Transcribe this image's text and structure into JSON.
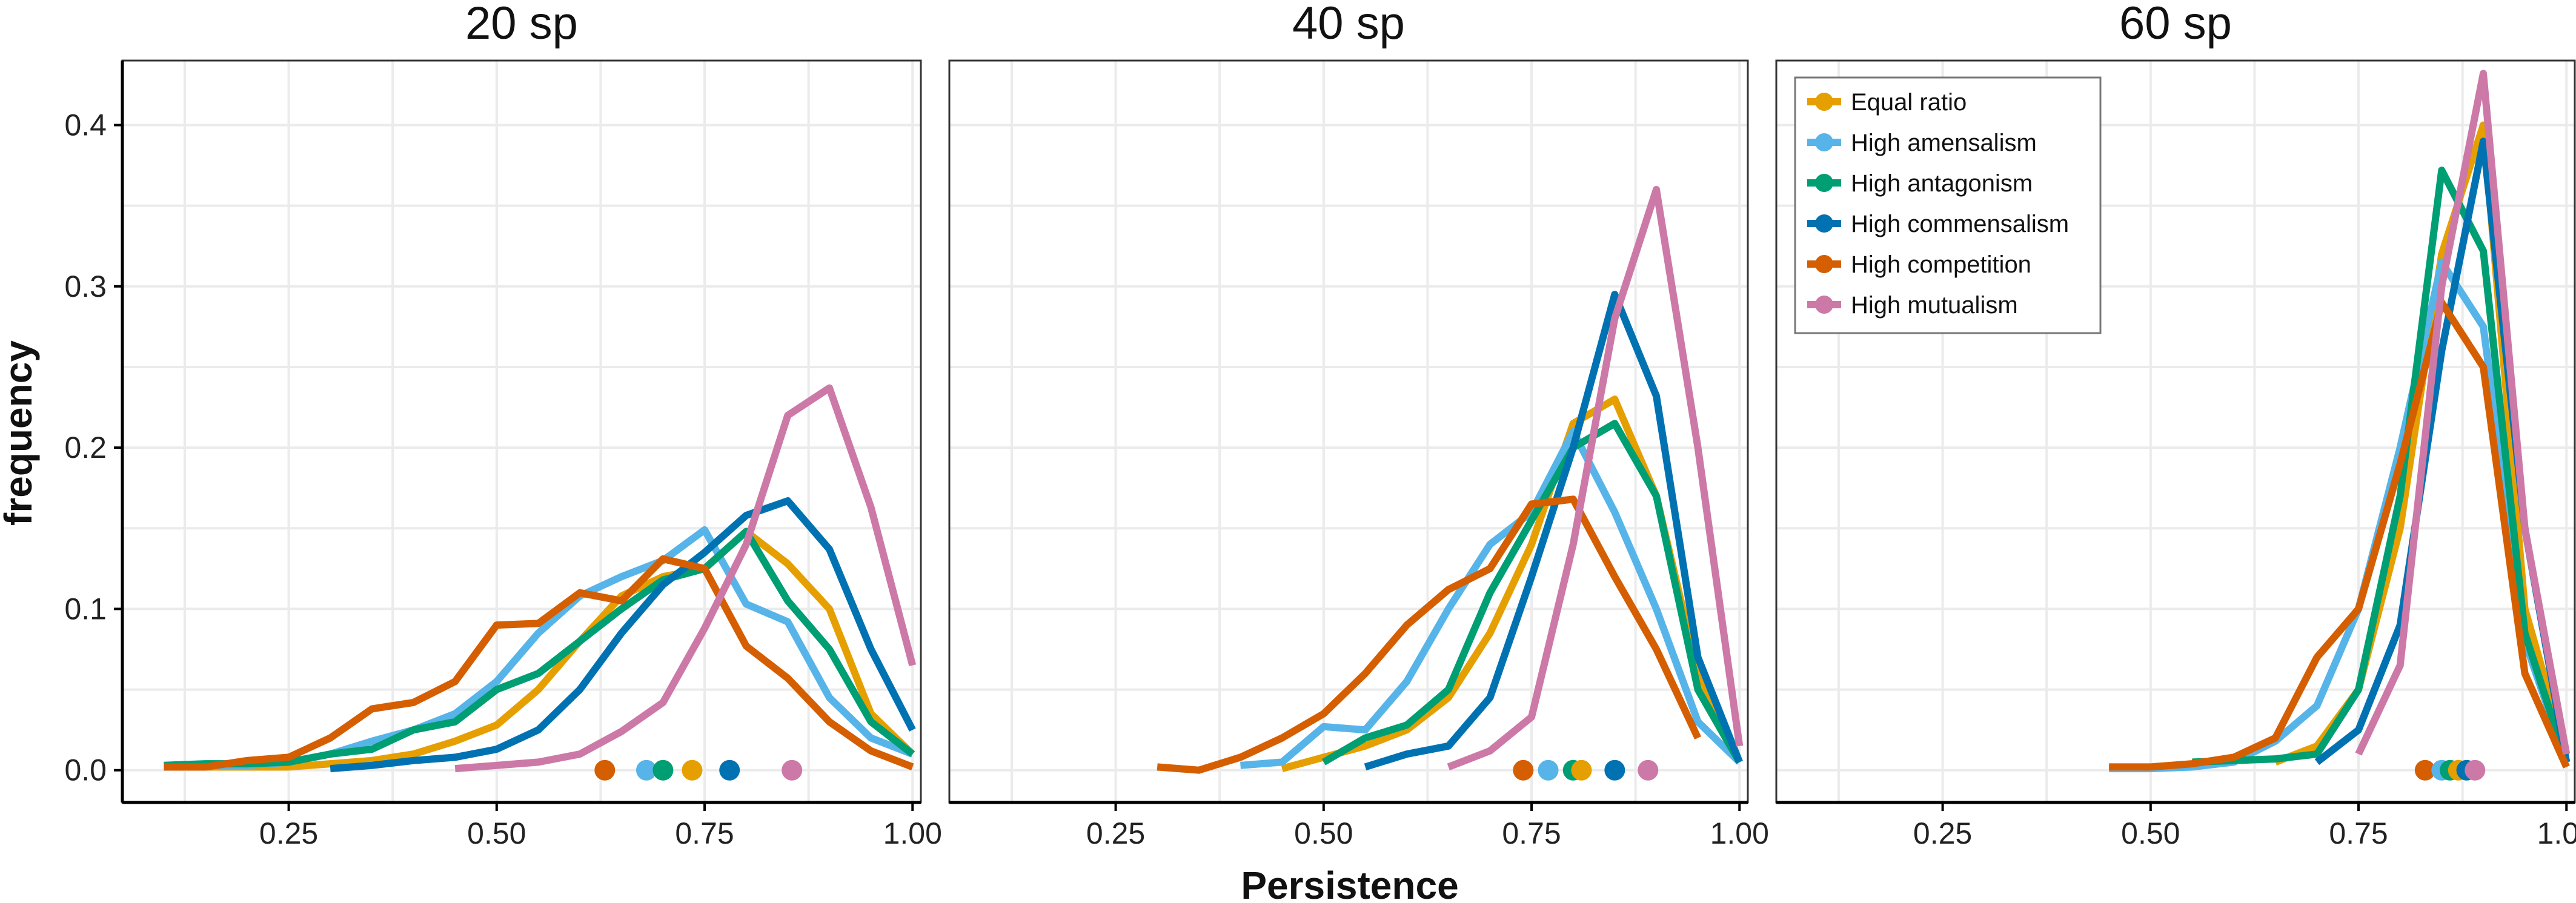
{
  "chart_data": {
    "type": "line",
    "xlabel": "Persistence",
    "ylabel": "frequency",
    "xlim": [
      0.05,
      1.01
    ],
    "ylim": [
      -0.02,
      0.44
    ],
    "xticks": [
      0.25,
      0.5,
      0.75,
      1.0
    ],
    "xtick_labels": [
      "0.25",
      "0.50",
      "0.75",
      "1.00"
    ],
    "yticks": [
      0.0,
      0.1,
      0.2,
      0.3,
      0.4
    ],
    "ytick_labels": [
      "0.0",
      "0.1",
      "0.2",
      "0.3",
      "0.4"
    ],
    "grid": true,
    "legend_position": "top-left of third panel",
    "series_styles": [
      {
        "name": "Equal ratio",
        "color": "#E69F00"
      },
      {
        "name": "High amensalism",
        "color": "#56B4E9"
      },
      {
        "name": "High antagonism",
        "color": "#009E73"
      },
      {
        "name": "High commensalism",
        "color": "#0072B2"
      },
      {
        "name": "High competition",
        "color": "#D55E00"
      },
      {
        "name": "High mutualism",
        "color": "#CC79A7"
      }
    ],
    "panels": [
      {
        "title": "20 sp",
        "series": [
          {
            "name": "Equal ratio",
            "x": [
              0.1,
              0.15,
              0.2,
              0.25,
              0.3,
              0.35,
              0.4,
              0.45,
              0.5,
              0.55,
              0.6,
              0.65,
              0.7,
              0.75,
              0.8,
              0.85,
              0.9,
              0.95,
              1.0
            ],
            "y": [
              0.002,
              0.002,
              0.002,
              0.002,
              0.004,
              0.006,
              0.01,
              0.018,
              0.028,
              0.05,
              0.08,
              0.108,
              0.12,
              0.125,
              0.148,
              0.128,
              0.1,
              0.035,
              0.01
            ]
          },
          {
            "name": "High amensalism",
            "x": [
              0.1,
              0.15,
              0.2,
              0.25,
              0.3,
              0.35,
              0.4,
              0.45,
              0.5,
              0.55,
              0.6,
              0.65,
              0.7,
              0.75,
              0.8,
              0.85,
              0.9,
              0.95,
              1.0
            ],
            "y": [
              0.002,
              0.003,
              0.003,
              0.005,
              0.01,
              0.018,
              0.025,
              0.035,
              0.055,
              0.085,
              0.108,
              0.12,
              0.13,
              0.149,
              0.103,
              0.092,
              0.045,
              0.02,
              0.01
            ]
          },
          {
            "name": "High antagonism",
            "x": [
              0.1,
              0.15,
              0.2,
              0.25,
              0.3,
              0.35,
              0.4,
              0.45,
              0.5,
              0.55,
              0.6,
              0.65,
              0.7,
              0.75,
              0.8,
              0.85,
              0.9,
              0.95,
              1.0
            ],
            "y": [
              0.003,
              0.004,
              0.004,
              0.005,
              0.01,
              0.013,
              0.025,
              0.03,
              0.05,
              0.06,
              0.08,
              0.1,
              0.118,
              0.125,
              0.148,
              0.105,
              0.075,
              0.03,
              0.01
            ]
          },
          {
            "name": "High commensalism",
            "x": [
              0.3,
              0.35,
              0.4,
              0.45,
              0.5,
              0.55,
              0.6,
              0.65,
              0.7,
              0.75,
              0.8,
              0.85,
              0.9,
              0.95,
              1.0
            ],
            "y": [
              0.001,
              0.003,
              0.006,
              0.008,
              0.013,
              0.025,
              0.05,
              0.085,
              0.115,
              0.135,
              0.158,
              0.167,
              0.137,
              0.075,
              0.025
            ]
          },
          {
            "name": "High competition",
            "x": [
              0.1,
              0.15,
              0.2,
              0.25,
              0.3,
              0.35,
              0.4,
              0.45,
              0.5,
              0.55,
              0.6,
              0.65,
              0.7,
              0.75,
              0.8,
              0.85,
              0.9,
              0.95,
              1.0
            ],
            "y": [
              0.002,
              0.002,
              0.006,
              0.008,
              0.02,
              0.038,
              0.042,
              0.055,
              0.09,
              0.091,
              0.11,
              0.105,
              0.131,
              0.125,
              0.077,
              0.057,
              0.03,
              0.012,
              0.002
            ]
          },
          {
            "name": "High mutualism",
            "x": [
              0.45,
              0.5,
              0.55,
              0.6,
              0.65,
              0.7,
              0.75,
              0.8,
              0.85,
              0.9,
              0.95,
              1.0
            ],
            "y": [
              0.001,
              0.003,
              0.005,
              0.01,
              0.024,
              0.042,
              0.088,
              0.14,
              0.22,
              0.237,
              0.163,
              0.065
            ]
          }
        ],
        "mean_points": [
          {
            "name": "High competition",
            "x": 0.63
          },
          {
            "name": "High amensalism",
            "x": 0.68
          },
          {
            "name": "High antagonism",
            "x": 0.7
          },
          {
            "name": "Equal ratio",
            "x": 0.735
          },
          {
            "name": "High commensalism",
            "x": 0.78
          },
          {
            "name": "High mutualism",
            "x": 0.855
          }
        ]
      },
      {
        "title": "40 sp",
        "series": [
          {
            "name": "Equal ratio",
            "x": [
              0.45,
              0.5,
              0.55,
              0.6,
              0.65,
              0.7,
              0.75,
              0.8,
              0.85,
              0.9,
              0.95,
              1.0
            ],
            "y": [
              0.001,
              0.008,
              0.015,
              0.025,
              0.045,
              0.085,
              0.14,
              0.215,
              0.23,
              0.17,
              0.06,
              0.005
            ]
          },
          {
            "name": "High amensalism",
            "x": [
              0.4,
              0.45,
              0.5,
              0.55,
              0.6,
              0.65,
              0.7,
              0.75,
              0.8,
              0.85,
              0.9,
              0.95,
              1.0
            ],
            "y": [
              0.003,
              0.005,
              0.027,
              0.025,
              0.055,
              0.1,
              0.14,
              0.16,
              0.21,
              0.16,
              0.1,
              0.03,
              0.005
            ]
          },
          {
            "name": "High antagonism",
            "x": [
              0.5,
              0.55,
              0.6,
              0.65,
              0.7,
              0.75,
              0.8,
              0.85,
              0.9,
              0.95,
              1.0
            ],
            "y": [
              0.005,
              0.02,
              0.028,
              0.05,
              0.11,
              0.155,
              0.2,
              0.215,
              0.17,
              0.05,
              0.005
            ]
          },
          {
            "name": "High commensalism",
            "x": [
              0.55,
              0.6,
              0.65,
              0.7,
              0.75,
              0.8,
              0.85,
              0.9,
              0.95,
              1.0
            ],
            "y": [
              0.002,
              0.01,
              0.015,
              0.045,
              0.12,
              0.2,
              0.295,
              0.232,
              0.07,
              0.005
            ]
          },
          {
            "name": "High competition",
            "x": [
              0.3,
              0.35,
              0.4,
              0.45,
              0.5,
              0.55,
              0.6,
              0.65,
              0.7,
              0.75,
              0.8,
              0.85,
              0.9,
              0.95
            ],
            "y": [
              0.002,
              0.0,
              0.008,
              0.02,
              0.035,
              0.06,
              0.09,
              0.112,
              0.125,
              0.165,
              0.168,
              0.12,
              0.075,
              0.02
            ]
          },
          {
            "name": "High mutualism",
            "x": [
              0.65,
              0.7,
              0.75,
              0.8,
              0.85,
              0.9,
              0.95,
              1.0
            ],
            "y": [
              0.002,
              0.012,
              0.033,
              0.14,
              0.28,
              0.36,
              0.2,
              0.015
            ]
          }
        ],
        "mean_points": [
          {
            "name": "High competition",
            "x": 0.74
          },
          {
            "name": "High amensalism",
            "x": 0.77
          },
          {
            "name": "High antagonism",
            "x": 0.8
          },
          {
            "name": "Equal ratio",
            "x": 0.81
          },
          {
            "name": "High commensalism",
            "x": 0.85
          },
          {
            "name": "High mutualism",
            "x": 0.89
          }
        ]
      },
      {
        "title": "60 sp",
        "series": [
          {
            "name": "Equal ratio",
            "x": [
              0.65,
              0.7,
              0.75,
              0.8,
              0.85,
              0.9,
              0.95,
              1.0
            ],
            "y": [
              0.005,
              0.015,
              0.05,
              0.15,
              0.32,
              0.4,
              0.1,
              0.01
            ]
          },
          {
            "name": "High amensalism",
            "x": [
              0.45,
              0.5,
              0.55,
              0.6,
              0.65,
              0.7,
              0.75,
              0.8,
              0.85,
              0.9,
              0.95,
              1.0
            ],
            "y": [
              0.001,
              0.001,
              0.002,
              0.005,
              0.018,
              0.04,
              0.1,
              0.2,
              0.315,
              0.275,
              0.08,
              0.005
            ]
          },
          {
            "name": "High antagonism",
            "x": [
              0.55,
              0.6,
              0.65,
              0.7,
              0.75,
              0.8,
              0.85,
              0.9,
              0.95,
              1.0
            ],
            "y": [
              0.005,
              0.006,
              0.007,
              0.01,
              0.05,
              0.17,
              0.372,
              0.322,
              0.085,
              0.005
            ]
          },
          {
            "name": "High commensalism",
            "x": [
              0.7,
              0.75,
              0.8,
              0.85,
              0.9,
              0.95,
              1.0
            ],
            "y": [
              0.005,
              0.025,
              0.09,
              0.26,
              0.39,
              0.15,
              0.005
            ]
          },
          {
            "name": "High competition",
            "x": [
              0.45,
              0.5,
              0.55,
              0.6,
              0.65,
              0.7,
              0.75,
              0.8,
              0.85,
              0.9,
              0.95,
              1.0
            ],
            "y": [
              0.002,
              0.002,
              0.004,
              0.008,
              0.02,
              0.07,
              0.1,
              0.19,
              0.29,
              0.25,
              0.06,
              0.002
            ]
          },
          {
            "name": "High mutualism",
            "x": [
              0.75,
              0.8,
              0.85,
              0.9,
              0.95,
              1.0
            ],
            "y": [
              0.01,
              0.065,
              0.3,
              0.432,
              0.15,
              0.01
            ]
          }
        ],
        "mean_points": [
          {
            "name": "High competition",
            "x": 0.83
          },
          {
            "name": "High amensalism",
            "x": 0.85
          },
          {
            "name": "High antagonism",
            "x": 0.86
          },
          {
            "name": "Equal ratio",
            "x": 0.87
          },
          {
            "name": "High commensalism",
            "x": 0.88
          },
          {
            "name": "High mutualism",
            "x": 0.89
          }
        ]
      }
    ]
  }
}
